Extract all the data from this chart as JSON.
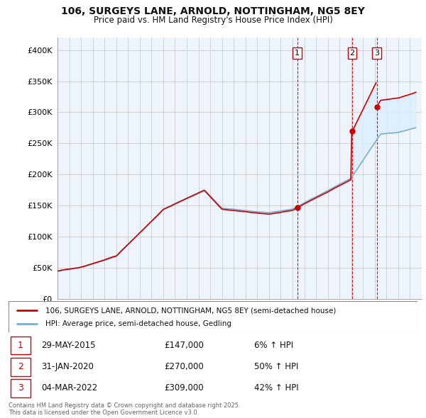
{
  "title": "106, SURGEYS LANE, ARNOLD, NOTTINGHAM, NG5 8EY",
  "subtitle": "Price paid vs. HM Land Registry's House Price Index (HPI)",
  "legend_house": "106, SURGEYS LANE, ARNOLD, NOTTINGHAM, NG5 8EY (semi-detached house)",
  "legend_hpi": "HPI: Average price, semi-detached house, Gedling",
  "footer": "Contains HM Land Registry data © Crown copyright and database right 2025.\nThis data is licensed under the Open Government Licence v3.0.",
  "transactions": [
    {
      "num": "1",
      "date": "29-MAY-2015",
      "price": "£147,000",
      "change": "6% ↑ HPI",
      "year": 2015.41
    },
    {
      "num": "2",
      "date": "31-JAN-2020",
      "price": "£270,000",
      "change": "50% ↑ HPI",
      "year": 2020.08
    },
    {
      "num": "3",
      "date": "04-MAR-2022",
      "price": "£309,000",
      "change": "42% ↑ HPI",
      "year": 2022.17
    }
  ],
  "transaction_values": [
    147000,
    270000,
    309000
  ],
  "vline_color": "#cc0000",
  "house_line_color": "#cc0000",
  "hpi_line_color": "#7aaed0",
  "fill_color": "#ddeeff",
  "ylabel_color": "#333333",
  "background_color": "#ffffff",
  "grid_color": "#cccccc",
  "xmin": 1995,
  "xmax": 2026,
  "ymin": 0,
  "ymax": 420000
}
